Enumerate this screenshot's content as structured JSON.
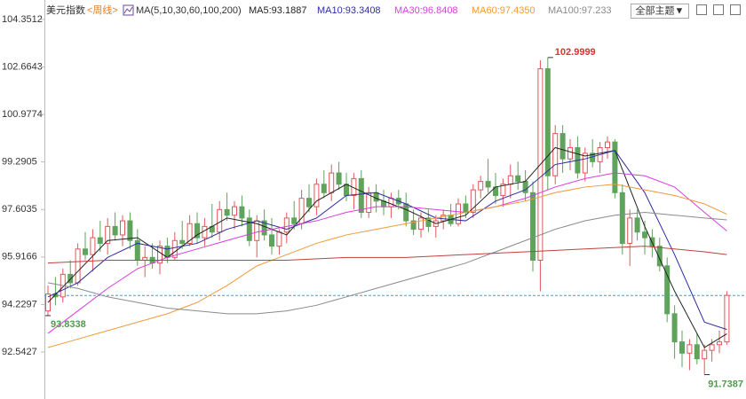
{
  "chart_data": {
    "type": "candlestick",
    "title": "美元指数",
    "subtitle": "<周线>",
    "indicator": "MA(5,10,30,60,100,200)",
    "up_color": "#e0575a",
    "down_color": "#5fa35c",
    "ylim": [
      91.03,
      104.79
    ],
    "yticks": [
      104.3512,
      102.6643,
      100.9774,
      99.2905,
      97.6035,
      95.9166,
      94.2297,
      92.5427
    ],
    "last_price": 94.55,
    "open": [
      94.0,
      94.6,
      94.5,
      95.3,
      95.0,
      96.2,
      96.0,
      96.6,
      96.4,
      97.0,
      96.7,
      97.2,
      96.5,
      95.8,
      95.9,
      95.7,
      96.3,
      95.9,
      96.5,
      96.4,
      97.1,
      96.6,
      97.0,
      96.8,
      97.6,
      97.4,
      97.7,
      97.3,
      96.5,
      97.2,
      96.7,
      96.3,
      96.8,
      97.3,
      97.1,
      98.0,
      97.7,
      98.5,
      98.2,
      98.9,
      98.5,
      98.1,
      98.7,
      97.5,
      98.2,
      97.9,
      97.7,
      98.0,
      97.8,
      97.2,
      96.9,
      97.3,
      97.0,
      97.2,
      97.4,
      97.1,
      97.8,
      97.5,
      98.3,
      98.6,
      98.4,
      98.1,
      98.5,
      98.8,
      98.6,
      98.2,
      95.8,
      102.6,
      98.8,
      100.3,
      99.4,
      99.8,
      98.9,
      99.6,
      99.3,
      99.8,
      100.0,
      98.2,
      96.4,
      97.3,
      96.8,
      96.6,
      96.3,
      95.6,
      93.9,
      92.9,
      92.5,
      92.8,
      92.3,
      92.6,
      92.8,
      92.9
    ],
    "high": [
      94.9,
      95.2,
      95.5,
      95.8,
      96.4,
      96.8,
      96.9,
      97.2,
      97.3,
      97.5,
      97.4,
      97.5,
      96.9,
      96.3,
      96.4,
      96.5,
      96.6,
      96.8,
      97.2,
      97.4,
      97.5,
      97.3,
      97.8,
      97.9,
      98.2,
      97.9,
      98.1,
      97.6,
      97.4,
      97.6,
      97.3,
      96.9,
      97.5,
      97.9,
      98.3,
      98.5,
      98.7,
      99.0,
      99.2,
      99.3,
      98.9,
      98.9,
      99.0,
      98.4,
      98.5,
      98.3,
      98.2,
      98.3,
      98.2,
      97.6,
      97.5,
      97.6,
      97.4,
      97.6,
      97.8,
      98.0,
      98.1,
      98.5,
      98.8,
      99.4,
      98.9,
      98.7,
      99.2,
      99.3,
      99.0,
      98.6,
      102.9,
      102.9999,
      100.6,
      100.6,
      100.1,
      100.2,
      99.8,
      100.1,
      100.0,
      100.2,
      100.1,
      98.5,
      97.6,
      97.6,
      97.2,
      96.9,
      96.6,
      95.9,
      94.2,
      93.3,
      93.0,
      93.2,
      92.8,
      93.0,
      93.3,
      94.7
    ],
    "low": [
      93.8338,
      94.2,
      94.3,
      94.8,
      94.9,
      95.8,
      95.4,
      96.1,
      96.0,
      96.5,
      96.3,
      96.2,
      95.6,
      95.2,
      95.5,
      95.3,
      95.7,
      95.8,
      96.2,
      96.3,
      96.4,
      96.3,
      96.6,
      96.5,
      97.2,
      96.9,
      97.0,
      96.3,
      95.9,
      96.5,
      96.0,
      96.0,
      96.4,
      96.9,
      96.9,
      97.5,
      97.4,
      98.0,
      97.9,
      98.3,
      97.9,
      97.6,
      97.3,
      97.3,
      97.5,
      97.4,
      97.3,
      97.6,
      97.0,
      96.7,
      96.6,
      96.8,
      96.6,
      96.9,
      97.0,
      97.0,
      97.3,
      97.3,
      98.0,
      98.2,
      97.8,
      97.7,
      98.0,
      98.3,
      97.9,
      95.4,
      94.7,
      98.3,
      98.5,
      98.9,
      99.0,
      98.7,
      98.6,
      99.1,
      98.9,
      99.4,
      98.0,
      96.0,
      95.6,
      96.5,
      96.0,
      95.9,
      95.4,
      93.6,
      92.3,
      92.0,
      91.9,
      92.1,
      91.7387,
      92.2,
      92.5,
      92.8
    ],
    "close": [
      94.6,
      94.5,
      95.3,
      95.0,
      96.2,
      96.0,
      96.6,
      96.4,
      97.0,
      96.7,
      97.2,
      96.5,
      95.8,
      95.9,
      95.7,
      96.3,
      95.9,
      96.5,
      96.4,
      97.1,
      96.6,
      97.0,
      96.8,
      97.6,
      97.4,
      97.7,
      97.3,
      96.5,
      97.2,
      96.7,
      96.3,
      96.8,
      97.3,
      97.1,
      98.0,
      97.7,
      98.5,
      98.2,
      98.9,
      98.5,
      98.1,
      98.7,
      97.5,
      98.2,
      97.9,
      97.7,
      98.0,
      97.8,
      97.2,
      96.9,
      97.3,
      97.0,
      97.2,
      97.4,
      97.1,
      97.8,
      97.5,
      98.3,
      98.6,
      98.4,
      98.1,
      98.5,
      98.8,
      98.6,
      98.2,
      95.8,
      102.6,
      98.8,
      100.3,
      99.4,
      99.8,
      98.9,
      99.6,
      99.3,
      99.8,
      100.0,
      98.2,
      96.4,
      97.3,
      96.8,
      96.6,
      96.3,
      95.6,
      93.9,
      92.9,
      92.5,
      92.8,
      92.3,
      92.6,
      92.8,
      92.9,
      94.55
    ],
    "series": [
      {
        "name": "MA5:93.1887",
        "color": "#222222",
        "x": [
          0,
          4,
          8,
          12,
          16,
          20,
          24,
          28,
          32,
          36,
          40,
          44,
          48,
          52,
          56,
          60,
          64,
          68,
          72,
          76,
          80,
          84,
          88,
          91
        ],
        "values": [
          94.3,
          95.4,
          96.5,
          96.6,
          95.9,
          96.7,
          97.3,
          97.1,
          96.7,
          97.9,
          98.5,
          98.0,
          97.6,
          97.1,
          97.4,
          98.4,
          98.6,
          99.8,
          99.5,
          99.7,
          97.0,
          94.7,
          92.7,
          93.1887
        ]
      },
      {
        "name": "MA10:93.3408",
        "color": "#2e2e9e",
        "x": [
          0,
          4,
          8,
          12,
          16,
          20,
          24,
          28,
          32,
          36,
          40,
          44,
          48,
          52,
          56,
          60,
          64,
          68,
          72,
          76,
          80,
          84,
          88,
          91
        ],
        "values": [
          94.5,
          95.0,
          95.9,
          96.4,
          96.2,
          96.4,
          96.9,
          97.2,
          96.9,
          97.3,
          98.1,
          98.2,
          97.8,
          97.3,
          97.2,
          97.9,
          98.3,
          99.2,
          99.4,
          99.7,
          98.2,
          96.0,
          93.6,
          93.3408
        ]
      },
      {
        "name": "MA30:96.8408",
        "color": "#d83fd8",
        "x": [
          0,
          4,
          8,
          12,
          16,
          20,
          24,
          28,
          32,
          36,
          40,
          44,
          48,
          52,
          56,
          60,
          64,
          68,
          72,
          76,
          80,
          84,
          88,
          91
        ],
        "values": [
          93.2,
          94.0,
          94.8,
          95.5,
          95.9,
          96.2,
          96.5,
          96.8,
          97.0,
          97.2,
          97.5,
          97.7,
          97.7,
          97.6,
          97.5,
          97.7,
          98.0,
          98.4,
          98.7,
          98.9,
          98.8,
          98.4,
          97.5,
          96.8408
        ]
      },
      {
        "name": "MA60:97.4350",
        "color": "#ef9a3c",
        "x": [
          0,
          4,
          8,
          12,
          16,
          20,
          24,
          28,
          32,
          36,
          40,
          44,
          48,
          52,
          56,
          60,
          64,
          68,
          72,
          76,
          80,
          84,
          88,
          91
        ],
        "values": [
          92.7,
          93.0,
          93.3,
          93.6,
          93.9,
          94.3,
          94.9,
          95.6,
          96.0,
          96.4,
          96.7,
          96.9,
          97.1,
          97.3,
          97.5,
          97.7,
          97.9,
          98.2,
          98.4,
          98.5,
          98.3,
          98.1,
          97.8,
          97.435
        ]
      },
      {
        "name": "MA100:97.233",
        "color": "#8a8a8a",
        "x": [
          0,
          4,
          8,
          12,
          16,
          20,
          24,
          28,
          32,
          36,
          40,
          44,
          48,
          52,
          56,
          60,
          64,
          68,
          72,
          76,
          80,
          84,
          88,
          91
        ],
        "values": [
          95.0,
          94.8,
          94.5,
          94.3,
          94.1,
          94.0,
          93.9,
          93.9,
          94.0,
          94.2,
          94.5,
          94.8,
          95.1,
          95.4,
          95.7,
          96.1,
          96.5,
          96.9,
          97.2,
          97.4,
          97.5,
          97.4,
          97.3,
          97.233
        ]
      },
      {
        "color": "#c0403c",
        "x": [
          0,
          8,
          16,
          24,
          32,
          40,
          48,
          56,
          64,
          72,
          80,
          88,
          91
        ],
        "values": [
          95.7,
          95.8,
          95.8,
          95.8,
          95.8,
          95.9,
          95.9,
          96.0,
          96.1,
          96.2,
          96.3,
          96.1,
          96.0
        ]
      }
    ]
  },
  "toolbar": {
    "theme_button": "全部主题▼"
  }
}
